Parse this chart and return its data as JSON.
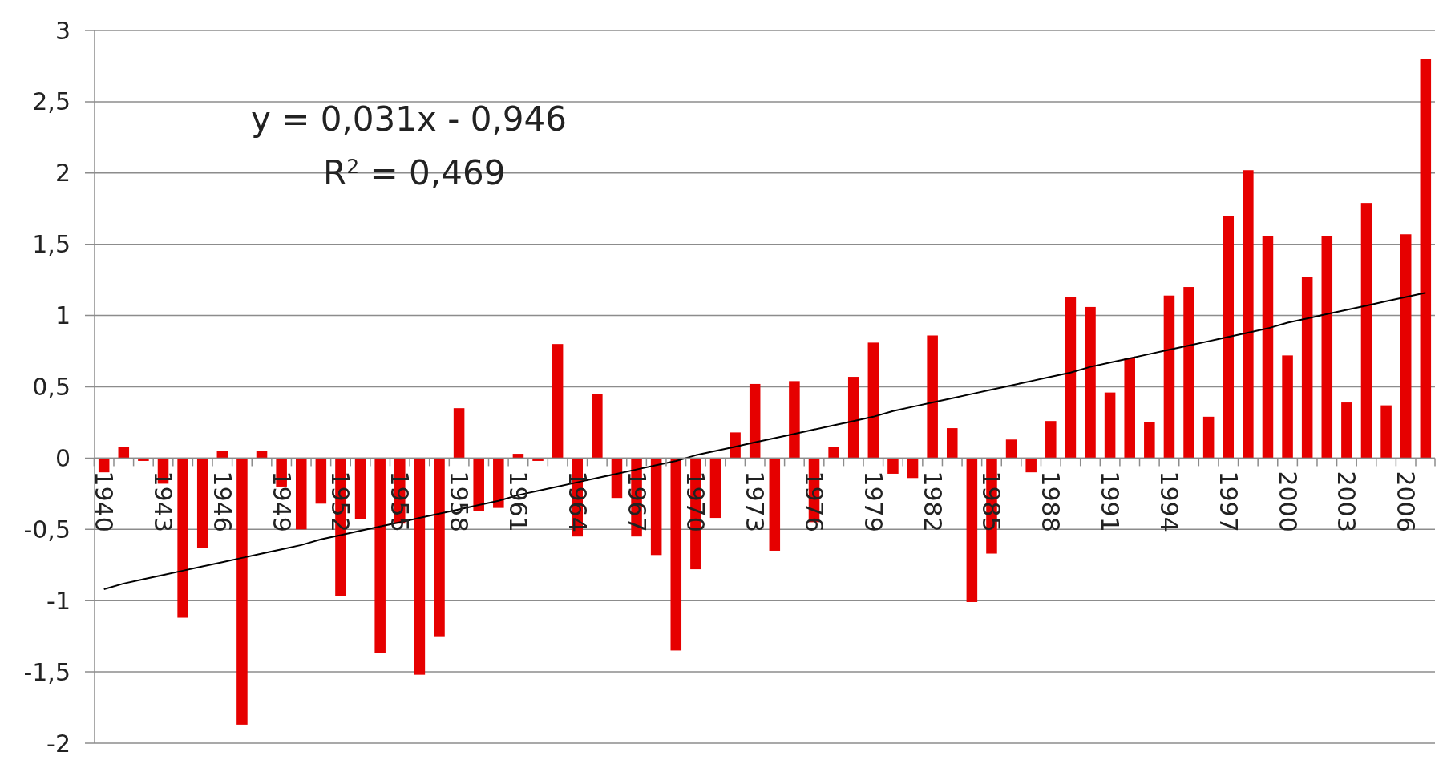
{
  "chart_data": {
    "type": "bar",
    "categories": [
      "1940",
      null,
      null,
      "1943",
      null,
      null,
      "1946",
      null,
      null,
      "1949",
      null,
      null,
      "1952",
      null,
      null,
      "1955",
      null,
      null,
      "1958",
      null,
      null,
      "1961",
      null,
      null,
      "1964",
      null,
      null,
      "1967",
      null,
      null,
      "1970",
      null,
      null,
      "1973",
      null,
      null,
      "1976",
      null,
      null,
      "1979",
      null,
      null,
      "1982",
      null,
      null,
      "1985",
      null,
      null,
      "1988",
      null,
      null,
      "1991",
      null,
      null,
      "1994",
      null,
      null,
      "1997",
      null,
      null,
      "2000",
      null,
      null,
      "2003",
      null,
      null,
      "2006",
      null
    ],
    "series": [
      {
        "color": "#e60000",
        "values": [
          -0.1,
          0.08,
          -0.02,
          -0.18,
          -1.12,
          -0.63,
          0.05,
          -1.87,
          0.05,
          -0.2,
          -0.5,
          -0.32,
          -0.97,
          -0.43,
          -1.37,
          -0.46,
          -1.52,
          -1.25,
          0.35,
          -0.37,
          -0.35,
          0.03,
          -0.02,
          0.8,
          -0.55,
          0.45,
          -0.28,
          -0.55,
          -0.68,
          -1.35,
          -0.78,
          -0.42,
          0.18,
          0.52,
          -0.65,
          0.54,
          -0.45,
          0.08,
          0.57,
          0.81,
          -0.11,
          -0.14,
          0.86,
          0.21,
          -1.01,
          -0.67,
          0.13,
          -0.1,
          0.26,
          1.13,
          1.06,
          0.46,
          0.7,
          0.25,
          1.14,
          1.2,
          0.29,
          1.7,
          2.02,
          1.56,
          0.72,
          1.27,
          1.56,
          0.39,
          1.79,
          0.37,
          1.57,
          2.8
        ]
      },
      {
        "type": "line",
        "color": "#000000",
        "values": [
          -0.92,
          -0.88,
          -0.85,
          -0.82,
          -0.79,
          -0.76,
          -0.73,
          -0.7,
          -0.67,
          -0.64,
          -0.61,
          -0.57,
          -0.54,
          -0.51,
          -0.48,
          -0.45,
          -0.42,
          -0.39,
          -0.36,
          -0.33,
          -0.3,
          -0.26,
          -0.23,
          -0.2,
          -0.17,
          -0.14,
          -0.11,
          -0.08,
          -0.05,
          -0.02,
          0.02,
          0.05,
          0.08,
          0.11,
          0.14,
          0.17,
          0.2,
          0.23,
          0.26,
          0.29,
          0.33,
          0.36,
          0.39,
          0.42,
          0.45,
          0.48,
          0.51,
          0.54,
          0.57,
          0.6,
          0.64,
          0.67,
          0.7,
          0.73,
          0.76,
          0.79,
          0.82,
          0.85,
          0.88,
          0.91,
          0.95,
          0.98,
          1.01,
          1.04,
          1.07,
          1.1,
          1.13,
          1.16
        ]
      }
    ],
    "ylim": [
      -2,
      3
    ],
    "yticks": [
      {
        "value": -2,
        "label": "-2"
      },
      {
        "value": -1.5,
        "label": "-1,5"
      },
      {
        "value": -1,
        "label": "-1"
      },
      {
        "value": -0.5,
        "label": "-0,5"
      },
      {
        "value": 0,
        "label": "0"
      },
      {
        "value": 0.5,
        "label": "0,5"
      },
      {
        "value": 1,
        "label": "1"
      },
      {
        "value": 1.5,
        "label": "1,5"
      },
      {
        "value": 2,
        "label": "2"
      },
      {
        "value": 2.5,
        "label": "2,5"
      },
      {
        "value": 3,
        "label": "3"
      }
    ],
    "grid": "y",
    "annotations": [
      "y = 0,031x - 0,946",
      "R$^{2}$ = 0,469"
    ]
  }
}
